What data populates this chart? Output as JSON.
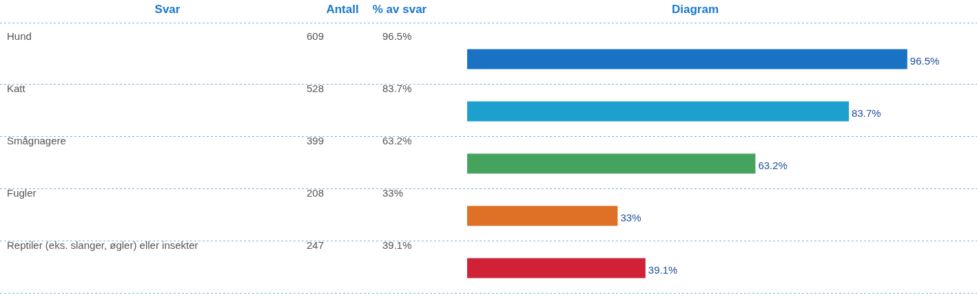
{
  "chart_data": {
    "type": "bar",
    "orientation": "horizontal",
    "title": "Diagram",
    "categories": [
      "Hund",
      "Katt",
      "Smågnagere",
      "Fugler",
      "Reptiler (eks. slanger, øgler) eller insekter"
    ],
    "values": [
      96.5,
      83.7,
      63.2,
      33,
      39.1
    ],
    "colors": [
      "#1a72c4",
      "#1ea0cf",
      "#45a35e",
      "#df7126",
      "#d02136"
    ],
    "value_labels": [
      "96.5%",
      "83.7%",
      "63.2%",
      "33%",
      "39.1%"
    ],
    "tick_labels": "y",
    "legend": false,
    "annotations": [
      "Svar",
      "Antall",
      "% av svar",
      "609",
      "528",
      "399",
      "208",
      "247"
    ]
  }
}
